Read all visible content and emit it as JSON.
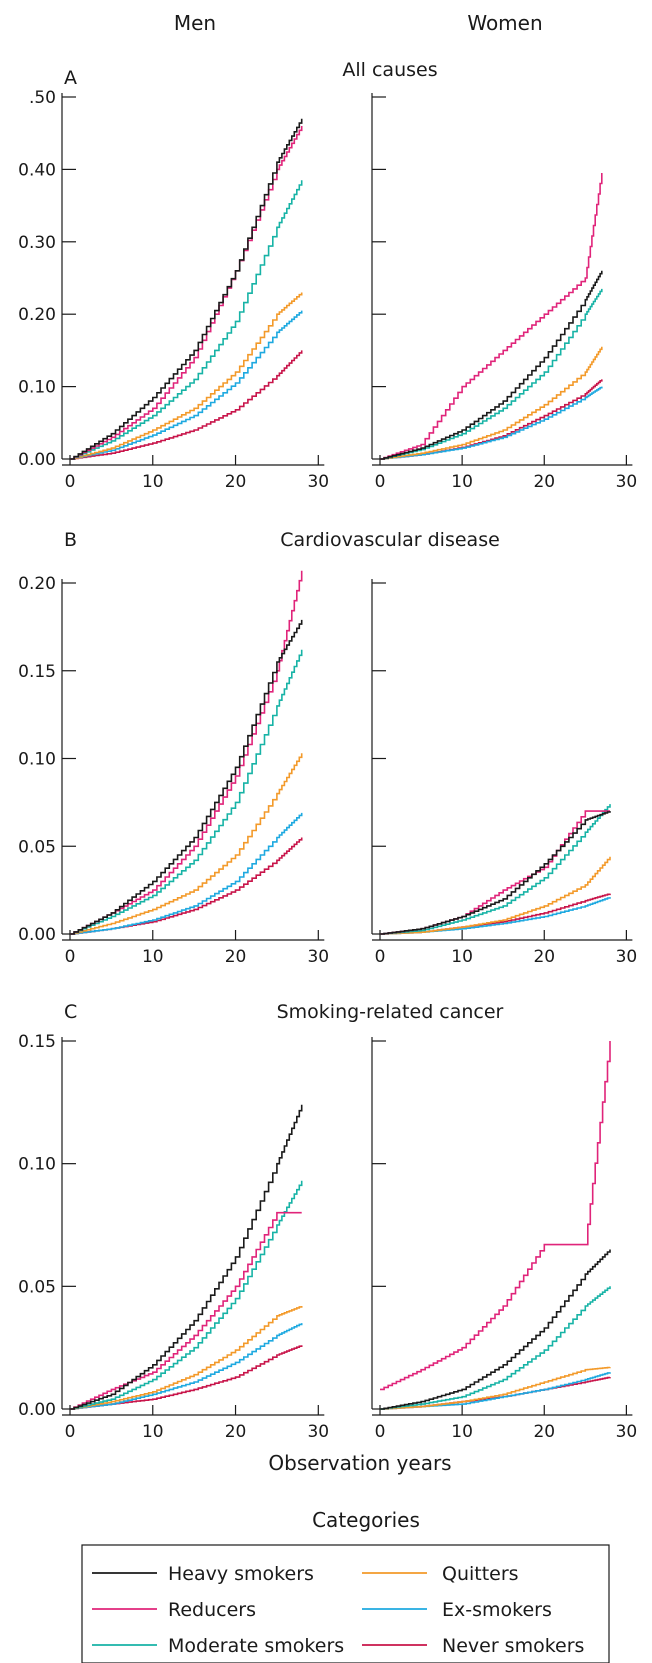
{
  "figure": {
    "column_headings": [
      "Men",
      "Women"
    ],
    "x_axis_title": "Observation years",
    "legend_title": "Categories"
  },
  "series_colors": {
    "Heavy smokers": "#1a1a1a",
    "Reducers": "#e0247a",
    "Moderate smokers": "#17b3a6",
    "Quitters": "#f39a2a",
    "Ex-smokers": "#1ea9e0",
    "Never smokers": "#c8144a"
  },
  "legend": {
    "items": [
      "Heavy smokers",
      "Quitters",
      "Reducers",
      "Ex-smokers",
      "Moderate smokers",
      "Never smokers"
    ]
  },
  "chart_data": [
    {
      "type": "line",
      "step": true,
      "panel": "A",
      "title": "All causes",
      "column": "Men",
      "xlim": [
        0,
        30
      ],
      "ylim": [
        0,
        0.5
      ],
      "xticks": [
        0,
        10,
        20,
        30
      ],
      "xtick_labels": [
        "0",
        "10",
        "20",
        "30"
      ],
      "yticks": [
        0,
        0.1,
        0.2,
        0.3,
        0.4,
        0.5
      ],
      "ytick_labels": [
        "0.00",
        "0.10",
        "0.20",
        "0.30",
        "0.40",
        ".50"
      ],
      "x": [
        0,
        5,
        10,
        15,
        20,
        25,
        28
      ],
      "series": [
        {
          "name": "Heavy smokers",
          "values": [
            0,
            0.035,
            0.085,
            0.15,
            0.26,
            0.41,
            0.47
          ]
        },
        {
          "name": "Reducers",
          "values": [
            0,
            0.03,
            0.07,
            0.14,
            0.26,
            0.4,
            0.46
          ]
        },
        {
          "name": "Moderate smokers",
          "values": [
            0,
            0.025,
            0.06,
            0.11,
            0.19,
            0.32,
            0.385
          ]
        },
        {
          "name": "Quitters",
          "values": [
            0,
            0.015,
            0.04,
            0.07,
            0.12,
            0.2,
            0.23
          ]
        },
        {
          "name": "Ex-smokers",
          "values": [
            0,
            0.012,
            0.033,
            0.06,
            0.105,
            0.175,
            0.205
          ]
        },
        {
          "name": "Never smokers",
          "values": [
            0,
            0.008,
            0.022,
            0.04,
            0.068,
            0.115,
            0.15
          ]
        }
      ]
    },
    {
      "type": "line",
      "step": true,
      "panel": "A",
      "title": "All causes",
      "column": "Women",
      "xlim": [
        0,
        30
      ],
      "ylim": [
        0,
        0.5
      ],
      "xticks": [
        0,
        10,
        20,
        30
      ],
      "xtick_labels": [
        "0",
        "10",
        "20",
        "30"
      ],
      "yticks": [
        0,
        0.1,
        0.2,
        0.3,
        0.4,
        0.5
      ],
      "ytick_labels": [
        "",
        "",
        "",
        "",
        "",
        ""
      ],
      "x": [
        0,
        5,
        10,
        15,
        20,
        25,
        27
      ],
      "series": [
        {
          "name": "Heavy smokers",
          "values": [
            0,
            0.015,
            0.04,
            0.08,
            0.14,
            0.22,
            0.26
          ]
        },
        {
          "name": "Reducers",
          "values": [
            0,
            0.02,
            0.1,
            0.15,
            0.2,
            0.25,
            0.395
          ]
        },
        {
          "name": "Moderate smokers",
          "values": [
            0,
            0.013,
            0.035,
            0.07,
            0.12,
            0.2,
            0.235
          ]
        },
        {
          "name": "Quitters",
          "values": [
            0,
            0.008,
            0.02,
            0.04,
            0.075,
            0.12,
            0.155
          ]
        },
        {
          "name": "Ex-smokers",
          "values": [
            0,
            0.006,
            0.015,
            0.03,
            0.055,
            0.085,
            0.1
          ]
        },
        {
          "name": "Never smokers",
          "values": [
            0,
            0.006,
            0.016,
            0.032,
            0.06,
            0.09,
            0.11
          ]
        }
      ]
    },
    {
      "type": "line",
      "step": true,
      "panel": "B",
      "title": "Cardiovascular disease",
      "column": "Men",
      "xlim": [
        0,
        30
      ],
      "ylim": [
        0,
        0.2
      ],
      "xticks": [
        0,
        10,
        20,
        30
      ],
      "xtick_labels": [
        "0",
        "10",
        "20",
        "30"
      ],
      "yticks": [
        0,
        0.05,
        0.1,
        0.15,
        0.2
      ],
      "ytick_labels": [
        "0.00",
        "0.05",
        "0.10",
        "0.15",
        "0.20"
      ],
      "x": [
        0,
        5,
        10,
        15,
        20,
        25,
        28
      ],
      "series": [
        {
          "name": "Heavy smokers",
          "values": [
            0,
            0.012,
            0.03,
            0.055,
            0.095,
            0.155,
            0.179
          ]
        },
        {
          "name": "Reducers",
          "values": [
            0,
            0.012,
            0.025,
            0.05,
            0.09,
            0.15,
            0.207
          ]
        },
        {
          "name": "Moderate smokers",
          "values": [
            0,
            0.01,
            0.022,
            0.042,
            0.075,
            0.13,
            0.162
          ]
        },
        {
          "name": "Quitters",
          "values": [
            0,
            0.006,
            0.014,
            0.025,
            0.045,
            0.08,
            0.103
          ]
        },
        {
          "name": "Ex-smokers",
          "values": [
            0,
            0.003,
            0.008,
            0.016,
            0.03,
            0.055,
            0.069
          ]
        },
        {
          "name": "Never smokers",
          "values": [
            0,
            0.003,
            0.007,
            0.014,
            0.025,
            0.042,
            0.055
          ]
        }
      ]
    },
    {
      "type": "line",
      "step": true,
      "panel": "B",
      "title": "Cardiovascular disease",
      "column": "Women",
      "xlim": [
        0,
        30
      ],
      "ylim": [
        0,
        0.2
      ],
      "xticks": [
        0,
        10,
        20,
        30
      ],
      "xtick_labels": [
        "0",
        "10",
        "20",
        "30"
      ],
      "yticks": [
        0,
        0.05,
        0.1,
        0.15,
        0.2
      ],
      "ytick_labels": [
        "",
        "",
        "",
        "",
        ""
      ],
      "x": [
        0,
        5,
        10,
        15,
        20,
        25,
        28
      ],
      "series": [
        {
          "name": "Heavy smokers",
          "values": [
            0,
            0.003,
            0.01,
            0.02,
            0.04,
            0.065,
            0.07
          ]
        },
        {
          "name": "Reducers",
          "values": [
            0,
            0.003,
            0.01,
            0.025,
            0.038,
            0.07,
            0.07
          ]
        },
        {
          "name": "Moderate smokers",
          "values": [
            0,
            0.002,
            0.008,
            0.016,
            0.032,
            0.058,
            0.074
          ]
        },
        {
          "name": "Quitters",
          "values": [
            0,
            0.001,
            0.004,
            0.008,
            0.016,
            0.028,
            0.044
          ]
        },
        {
          "name": "Ex-smokers",
          "values": [
            0,
            0.001,
            0.003,
            0.006,
            0.01,
            0.016,
            0.021
          ]
        },
        {
          "name": "Never smokers",
          "values": [
            0,
            0.001,
            0.004,
            0.007,
            0.012,
            0.019,
            0.023
          ]
        }
      ]
    },
    {
      "type": "line",
      "step": true,
      "panel": "C",
      "title": "Smoking-related cancer",
      "column": "Men",
      "xlim": [
        0,
        30
      ],
      "ylim": [
        0,
        0.15
      ],
      "xticks": [
        0,
        10,
        20,
        30
      ],
      "xtick_labels": [
        "0",
        "10",
        "20",
        "30"
      ],
      "yticks": [
        0,
        0.05,
        0.1,
        0.15
      ],
      "ytick_labels": [
        "0.00",
        "0.05",
        "0.10",
        "0.15"
      ],
      "x": [
        0,
        5,
        10,
        15,
        20,
        25,
        28
      ],
      "series": [
        {
          "name": "Heavy smokers",
          "values": [
            0,
            0.006,
            0.018,
            0.036,
            0.062,
            0.1,
            0.124
          ]
        },
        {
          "name": "Reducers",
          "values": [
            0,
            0.008,
            0.015,
            0.03,
            0.05,
            0.08,
            0.08
          ]
        },
        {
          "name": "Moderate smokers",
          "values": [
            0,
            0.004,
            0.012,
            0.025,
            0.045,
            0.075,
            0.093
          ]
        },
        {
          "name": "Quitters",
          "values": [
            0,
            0.003,
            0.007,
            0.014,
            0.024,
            0.038,
            0.042
          ]
        },
        {
          "name": "Ex-smokers",
          "values": [
            0,
            0.002,
            0.006,
            0.011,
            0.019,
            0.03,
            0.035
          ]
        },
        {
          "name": "Never smokers",
          "values": [
            0,
            0.002,
            0.004,
            0.008,
            0.013,
            0.022,
            0.026
          ]
        }
      ]
    },
    {
      "type": "line",
      "step": true,
      "panel": "C",
      "title": "Smoking-related cancer",
      "column": "Women",
      "xlim": [
        0,
        30
      ],
      "ylim": [
        0,
        0.15
      ],
      "xticks": [
        0,
        10,
        20,
        30
      ],
      "xtick_labels": [
        "0",
        "10",
        "20",
        "30"
      ],
      "yticks": [
        0,
        0.05,
        0.1,
        0.15
      ],
      "ytick_labels": [
        "",
        "",
        "",
        ""
      ],
      "x": [
        0,
        5,
        10,
        15,
        20,
        25,
        28
      ],
      "series": [
        {
          "name": "Heavy smokers",
          "values": [
            0,
            0.003,
            0.008,
            0.018,
            0.033,
            0.055,
            0.065
          ]
        },
        {
          "name": "Reducers",
          "values": [
            0.008,
            0.016,
            0.025,
            0.042,
            0.067,
            0.067,
            0.15
          ]
        },
        {
          "name": "Moderate smokers",
          "values": [
            0,
            0.002,
            0.005,
            0.012,
            0.024,
            0.042,
            0.05
          ]
        },
        {
          "name": "Quitters",
          "values": [
            0,
            0.001,
            0.003,
            0.006,
            0.011,
            0.016,
            0.017
          ]
        },
        {
          "name": "Ex-smokers",
          "values": [
            0,
            0.001,
            0.002,
            0.005,
            0.008,
            0.012,
            0.015
          ]
        },
        {
          "name": "Never smokers",
          "values": [
            0,
            0.001,
            0.003,
            0.005,
            0.008,
            0.011,
            0.013
          ]
        }
      ]
    }
  ]
}
